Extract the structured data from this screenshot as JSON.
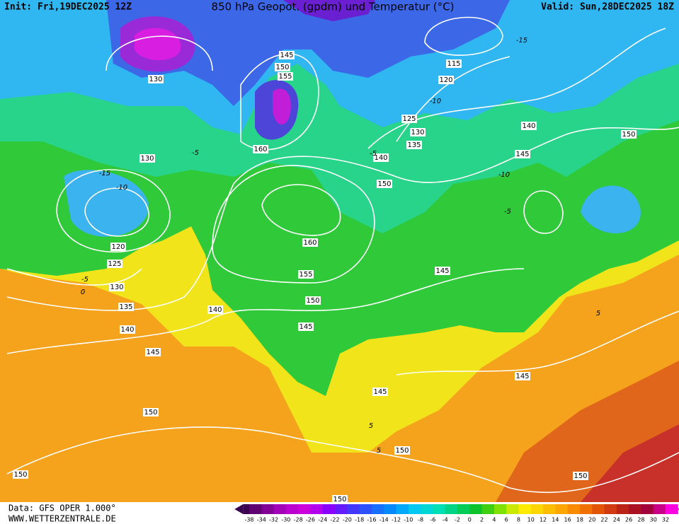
{
  "header": {
    "init": "Init: Fri,19DEC2025 12Z",
    "title": "850 hPa Geopot. (gpdm) und Temperatur (°C)",
    "valid": "Valid: Sun,28DEC2025 18Z"
  },
  "footer": {
    "data": "Data: GFS OPER 1.000°",
    "site": "WWW.WETTERZENTRALE.DE"
  },
  "legend": {
    "labels": [
      -38,
      -34,
      -32,
      -30,
      -28,
      -26,
      -24,
      -22,
      -20,
      -18,
      -16,
      -14,
      -12,
      -10,
      -8,
      -6,
      -4,
      -2,
      0,
      2,
      4,
      6,
      8,
      10,
      12,
      14,
      16,
      18,
      20,
      22,
      24,
      26,
      28,
      30,
      32
    ]
  },
  "geopotential_labels": [
    "145",
    "150",
    "155",
    "130",
    "115",
    "120",
    "125",
    "130",
    "135",
    "140",
    "140",
    "145",
    "150",
    "160",
    "130",
    "150",
    "120",
    "125",
    "160",
    "155",
    "145",
    "150",
    "130",
    "135",
    "140",
    "140",
    "145",
    "145",
    "145",
    "145",
    "150",
    "150",
    "150",
    "150",
    "150"
  ],
  "temperature_labels": [
    "-15",
    "-10",
    "-10",
    "-5",
    "-15",
    "-10",
    "-5",
    "0",
    "-5",
    "5",
    "-5",
    "5",
    "5"
  ]
}
